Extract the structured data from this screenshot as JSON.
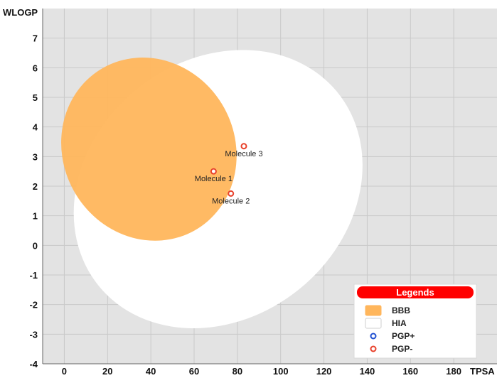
{
  "chart_data": {
    "type": "scatter",
    "title": "",
    "xlabel": "TPSA",
    "ylabel": "WLOGP",
    "xlim": [
      -10,
      200
    ],
    "ylim": [
      -4,
      8
    ],
    "xticks": [
      0,
      20,
      40,
      60,
      80,
      100,
      120,
      140,
      160,
      180
    ],
    "yticks": [
      -4,
      -3,
      -2,
      -1,
      0,
      1,
      2,
      3,
      4,
      5,
      6,
      7
    ],
    "grid": true,
    "legend": {
      "title": "Legends",
      "position": "bottom-right",
      "entries": [
        {
          "name": "BBB",
          "kind": "region",
          "color": "#FFB65C"
        },
        {
          "name": "HIA",
          "kind": "region",
          "color": "#FFFFFF"
        },
        {
          "name": "PGP+",
          "kind": "marker",
          "color": "#1F4FD1"
        },
        {
          "name": "PGP-",
          "kind": "marker",
          "color": "#E8412B"
        }
      ]
    },
    "regions": [
      {
        "name": "HIA",
        "color": "#FFFFFF",
        "center": [
          71.1,
          1.9
        ],
        "radii": [
          142.1,
          8.7
        ],
        "angle_deg": -39
      },
      {
        "name": "BBB",
        "color": "#FFB65C",
        "center": [
          39.1,
          3.25
        ],
        "radii": [
          79.4,
          6.3
        ],
        "angle_deg": -29
      }
    ],
    "points": [
      {
        "label": "Molecule 1",
        "x": 69,
        "y": 2.5,
        "class": "PGP-"
      },
      {
        "label": "Molecule 2",
        "x": 77,
        "y": 1.75,
        "class": "PGP-"
      },
      {
        "label": "Molecule 3",
        "x": 83,
        "y": 3.35,
        "class": "PGP-"
      }
    ]
  }
}
